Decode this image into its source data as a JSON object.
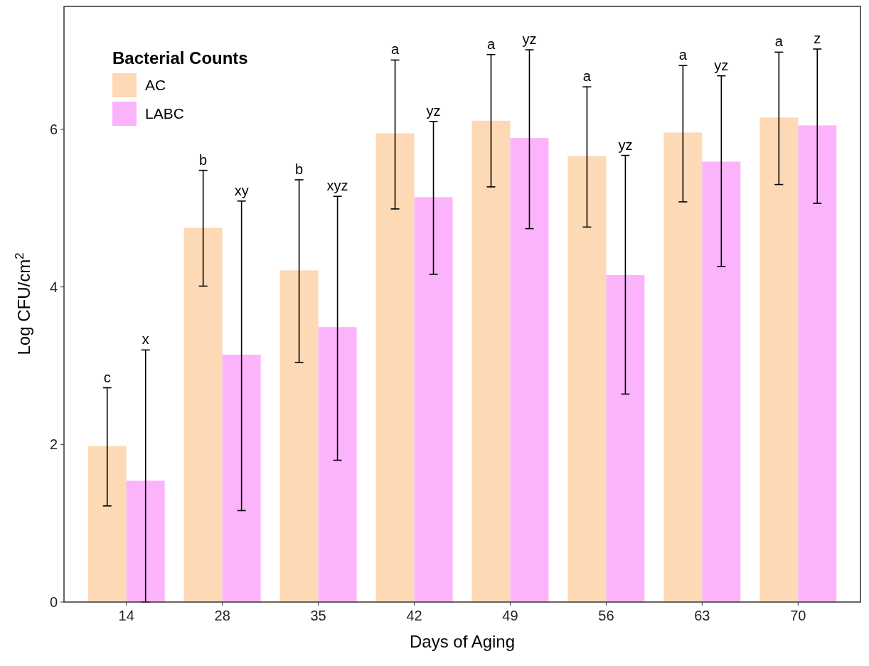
{
  "chart_data": {
    "type": "bar",
    "xlabel": "Days of Aging",
    "ylabel": "Log CFU/cm$^{2}$",
    "legend_title": "Bacterial Counts",
    "legend": "top left",
    "grid": false,
    "categories": [
      "14",
      "28",
      "35",
      "42",
      "49",
      "56",
      "63",
      "70"
    ],
    "series": [
      {
        "name": "AC",
        "color": "#fdd9b5",
        "values": [
          1.98,
          4.75,
          4.21,
          5.95,
          6.11,
          5.66,
          5.96,
          6.15
        ],
        "errors": [
          [
            1.22,
            2.72
          ],
          [
            4.01,
            5.48
          ],
          [
            3.04,
            5.36
          ],
          [
            4.99,
            6.88
          ],
          [
            5.27,
            6.95
          ],
          [
            4.76,
            6.54
          ],
          [
            5.08,
            6.81
          ],
          [
            5.3,
            6.98
          ]
        ]
      },
      {
        "name": "LABC",
        "color": "#fbb4fb",
        "values": [
          1.54,
          3.14,
          3.49,
          5.14,
          5.89,
          4.15,
          5.59,
          6.05
        ],
        "errors": [
          [
            0,
            3.2
          ],
          [
            1.16,
            5.09
          ],
          [
            1.8,
            5.15
          ],
          [
            4.16,
            6.1
          ],
          [
            4.74,
            7.01
          ],
          [
            2.64,
            5.67
          ],
          [
            4.26,
            6.68
          ],
          [
            5.06,
            7.02
          ]
        ]
      }
    ],
    "ylim": [
      0,
      7.57
    ],
    "yticks": [
      0,
      2,
      4,
      6
    ],
    "annotations": [
      "c",
      "x",
      "b",
      "xy",
      "b",
      "xyz",
      "a",
      "yz",
      "a",
      "yz",
      "a",
      "yz",
      "a",
      "yz",
      "a",
      "z"
    ]
  }
}
